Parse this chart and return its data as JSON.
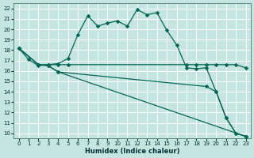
{
  "xlabel": "Humidex (Indice chaleur)",
  "background_color": "#c5e5e0",
  "grid_color": "#b0d8d0",
  "line_color": "#006655",
  "xlim": [
    -0.5,
    23.5
  ],
  "ylim": [
    9.5,
    22.5
  ],
  "xticks": [
    0,
    1,
    2,
    3,
    4,
    5,
    6,
    7,
    8,
    9,
    10,
    11,
    12,
    13,
    14,
    15,
    16,
    17,
    18,
    19,
    20,
    21,
    22,
    23
  ],
  "yticks": [
    10,
    11,
    12,
    13,
    14,
    15,
    16,
    17,
    18,
    19,
    20,
    21,
    22
  ],
  "curve1_x": [
    0,
    1,
    2,
    3,
    4,
    5,
    6,
    7,
    8,
    9,
    10,
    11,
    12,
    13,
    14,
    15,
    16,
    17,
    18,
    19,
    20,
    21,
    22,
    23
  ],
  "curve1_y": [
    18.2,
    17.1,
    16.5,
    16.6,
    16.7,
    17.2,
    19.5,
    21.3,
    20.3,
    20.6,
    20.8,
    20.3,
    21.9,
    21.4,
    21.6,
    19.9,
    18.5,
    16.3,
    16.2,
    16.3,
    14.0,
    11.5,
    10.0,
    9.7
  ],
  "curve2_x": [
    0,
    2,
    3,
    4,
    5,
    17,
    18,
    19,
    20,
    21,
    22,
    23
  ],
  "curve2_y": [
    18.2,
    16.6,
    16.6,
    16.6,
    16.6,
    16.6,
    16.6,
    16.6,
    16.6,
    16.6,
    16.6,
    16.3
  ],
  "curve3_x": [
    0,
    2,
    3,
    4,
    19,
    20,
    21,
    22,
    23
  ],
  "curve3_y": [
    18.2,
    16.6,
    16.5,
    15.9,
    14.5,
    14.0,
    11.5,
    10.0,
    9.7
  ],
  "curve4_x": [
    0,
    2,
    3,
    4,
    23
  ],
  "curve4_y": [
    18.2,
    16.6,
    16.5,
    15.9,
    9.7
  ]
}
